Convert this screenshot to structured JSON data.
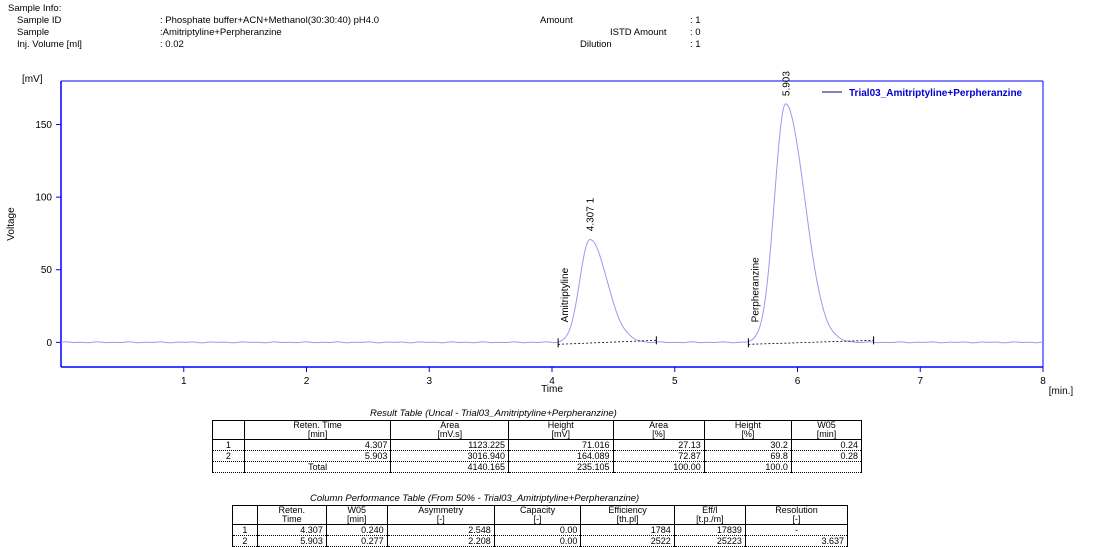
{
  "sample_info": {
    "heading": "Sample Info:",
    "sample_id_label": "Sample ID",
    "sample_id_value": ": Phosphate buffer+ACN+Methanol(30:30:40) pH4.0",
    "sample_label": "Sample",
    "sample_value": ":Amitriptyline+Perpheranzine",
    "inj_volume_label": "Inj. Volume [ml]",
    "inj_volume_value": ": 0.02",
    "amount_label": "Amount",
    "amount_value": ": 1",
    "istd_label": "ISTD Amount",
    "istd_value": ": 0",
    "dilution_label": "Dilution",
    "dilution_value": ": 1"
  },
  "chart_data": {
    "type": "line",
    "title": "",
    "xlabel": "Time",
    "xunit": "[min.]",
    "ylabel": "Voltage",
    "yunit": "[mV]",
    "xlim": [
      0,
      8
    ],
    "ylim": [
      -17,
      180
    ],
    "x_ticks": [
      1,
      2,
      3,
      4,
      5,
      6,
      7,
      8
    ],
    "y_ticks": [
      0,
      50,
      100,
      150
    ],
    "legend": "Trial03_Amitriptyline+Perpheranzine",
    "legend_position": "top-right",
    "colors": {
      "trace": "#9a9aee",
      "axis": "#0000ff",
      "baseline": "#000000",
      "legend": "#0000cc"
    },
    "peaks": [
      {
        "rt": 4.307,
        "height": 71.016,
        "number": "1",
        "rt_label": "4.307",
        "name": "Amitriptyline",
        "start": 4.05,
        "end": 4.85,
        "sigma_left": 0.08,
        "sigma_right": 0.14
      },
      {
        "rt": 5.903,
        "height": 164.089,
        "number": "2",
        "rt_label": "5.903",
        "name": "Perpheranzine",
        "start": 5.6,
        "end": 6.62,
        "sigma_left": 0.09,
        "sigma_right": 0.155
      }
    ]
  },
  "result_table": {
    "title": "Result Table (Uncal - Trial03_Amitriptyline+Perpheranzine)",
    "headers": [
      [
        "",
        ""
      ],
      [
        "Reten. Time",
        "[min]"
      ],
      [
        "Area",
        "[mV.s]"
      ],
      [
        "Height",
        "[mV]"
      ],
      [
        "Area",
        "[%]"
      ],
      [
        "Height",
        "[%]"
      ],
      [
        "W05",
        "[min]"
      ]
    ],
    "rows": [
      [
        "1",
        "4.307",
        "1123.225",
        "71.016",
        "27.13",
        "30.2",
        "0.24"
      ],
      [
        "2",
        "5.903",
        "3016.940",
        "164.089",
        "72.87",
        "69.8",
        "0.28"
      ],
      [
        "",
        "Total",
        "4140.165",
        "235.105",
        "100.00",
        "100.0",
        ""
      ]
    ]
  },
  "column_table": {
    "title": "Column Performance Table (From 50% - Trial03_Amitriptyline+Perpheranzine)",
    "headers": [
      [
        "",
        ""
      ],
      [
        "Reten.",
        "Time"
      ],
      [
        "W05",
        "[min]"
      ],
      [
        "Asymmetry",
        "[-]"
      ],
      [
        "Capacity",
        "[-]"
      ],
      [
        "Efficiency",
        "[th.pl]"
      ],
      [
        "Eff/l",
        "[t.p./m]"
      ],
      [
        "Resolution",
        "[-]"
      ]
    ],
    "rows": [
      [
        "1",
        "4.307",
        "0.240",
        "2.548",
        "0.00",
        "1784",
        "17839",
        "-"
      ],
      [
        "2",
        "5.903",
        "0.277",
        "2.208",
        "0.00",
        "2522",
        "25223",
        "3.637"
      ]
    ]
  }
}
